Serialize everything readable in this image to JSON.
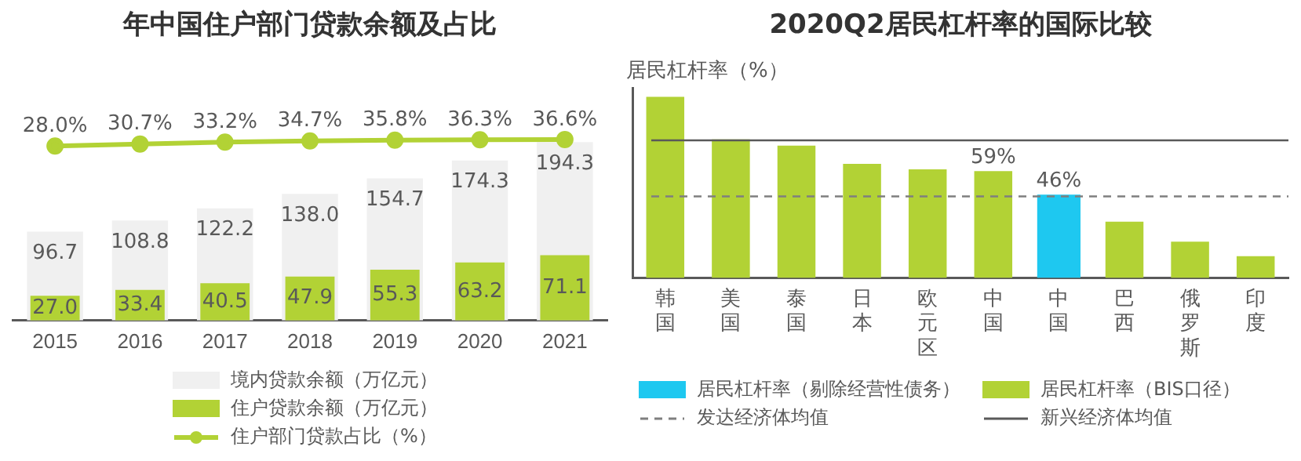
{
  "chart_data": [
    {
      "type": "bar",
      "title": "年中国住户部门贷款余额及占比",
      "categories": [
        "2015",
        "2016",
        "2017",
        "2018",
        "2019",
        "2020",
        "2021"
      ],
      "series": [
        {
          "name": "境内贷款余额（万亿元）",
          "color": "#f0f0f0",
          "values": [
            96.7,
            108.8,
            122.2,
            138.0,
            154.7,
            174.3,
            194.3
          ],
          "value_labels": [
            "96.7",
            "108.8",
            "122.2",
            "138.0",
            "154.7",
            "174.3",
            "194.3"
          ]
        },
        {
          "name": "住户贷款余额（万亿元）",
          "color": "#b2d235",
          "values": [
            27.0,
            33.4,
            40.5,
            47.9,
            55.3,
            63.2,
            71.1
          ],
          "value_labels": [
            "27.0",
            "33.4",
            "40.5",
            "47.9",
            "55.3",
            "63.2",
            "71.1"
          ]
        },
        {
          "name": "住户部门贷款占比（%）",
          "type": "line",
          "axis": "y2",
          "color": "#b2d235",
          "values": [
            28.0,
            30.7,
            33.2,
            34.7,
            35.8,
            36.3,
            36.6
          ],
          "value_labels": [
            "28.0%",
            "30.7%",
            "33.2%",
            "34.7%",
            "35.8%",
            "36.3%",
            "36.6%"
          ]
        }
      ],
      "tick_labels": "x",
      "grid": false,
      "legend": "bottom",
      "marker": "circle"
    },
    {
      "type": "bar",
      "title": "2020Q2居民杠杆率的国际比较",
      "ylabel": "居民杠杆率（%）",
      "categories": [
        "韩国",
        "美国",
        "泰国",
        "日本",
        "欧元区",
        "中国",
        "中国",
        "巴西",
        "俄罗斯",
        "印度"
      ],
      "series": [
        {
          "name": "居民杠杆率（剔除经营性债务）",
          "color": "#1ec8f0",
          "values": [
            null,
            null,
            null,
            null,
            null,
            null,
            46,
            null,
            null,
            null
          ],
          "value_labels": [
            null,
            null,
            null,
            null,
            null,
            null,
            "46%",
            null,
            null,
            null
          ]
        },
        {
          "name": "居民杠杆率（BIS口径）",
          "color": "#b2d235",
          "values": [
            100,
            76.5,
            73,
            63,
            60,
            59,
            null,
            31,
            20,
            12
          ],
          "value_labels": [
            null,
            null,
            null,
            null,
            null,
            "59%",
            null,
            null,
            null,
            null
          ]
        }
      ],
      "ref_lines": [
        {
          "axis": "y",
          "value": 45,
          "label": "发达经济体均值",
          "color": "#7f7f7f",
          "line_style": "dashed"
        },
        {
          "axis": "y",
          "value": 76,
          "label": "新兴经济体均值",
          "color": "#595959",
          "line_style": "solid"
        }
      ],
      "ylim": [
        0,
        105
      ],
      "tick_labels": "x",
      "grid": false,
      "legend": "bottom"
    }
  ]
}
